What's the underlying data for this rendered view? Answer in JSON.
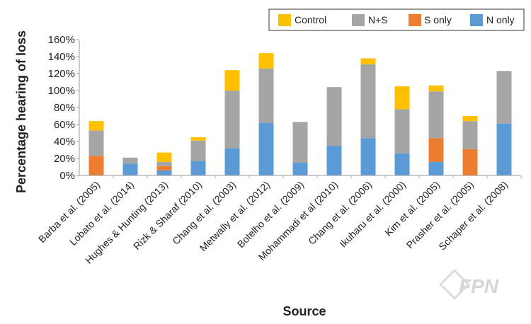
{
  "chart_data": {
    "type": "bar",
    "stacked": true,
    "xlabel": "Source",
    "ylabel": "Percentage hearing of loss",
    "ylim": [
      0,
      160
    ],
    "yticks": [
      "0%",
      "20%",
      "40%",
      "60%",
      "80%",
      "100%",
      "120%",
      "140%",
      "160%"
    ],
    "categories": [
      "Barba et al. (2005)",
      "Lobato et al. (2014)",
      "Hughes & Hunting (2013)",
      "Rizk & Sharaf (2010)",
      "Chang et al. (2003)",
      "Metwally et al. (2012)",
      "Botelho et al. (2009)",
      "Mohammadi et al (2010)",
      "Chang et al. (2006)",
      "Ikuharu et al. (2000)",
      "Kim et al. (2005)",
      "Prasher et al. (2005)",
      "Schaper et al. (2008)"
    ],
    "series": [
      {
        "name": "N only",
        "color": "#5b9bd5",
        "values": [
          0,
          14,
          6,
          17,
          32,
          62,
          15,
          35,
          44,
          26,
          16,
          0,
          61
        ]
      },
      {
        "name": "S only",
        "color": "#ed7d31",
        "values": [
          23,
          0,
          5,
          0,
          0,
          0,
          0,
          0,
          0,
          0,
          28,
          31,
          0
        ]
      },
      {
        "name": "N+S",
        "color": "#a5a5a5",
        "values": [
          30,
          7,
          5,
          24,
          68,
          64,
          48,
          69,
          87,
          52,
          55,
          33,
          62
        ]
      },
      {
        "name": "Control",
        "color": "#ffc000",
        "values": [
          11,
          0,
          11,
          4,
          24,
          18,
          0,
          0,
          7,
          27,
          7,
          6,
          0
        ]
      }
    ],
    "legend": {
      "placement": "top-right",
      "order": [
        "Control",
        "N+S",
        "S only",
        "N only"
      ]
    },
    "grid": false
  },
  "watermark": "FPN"
}
